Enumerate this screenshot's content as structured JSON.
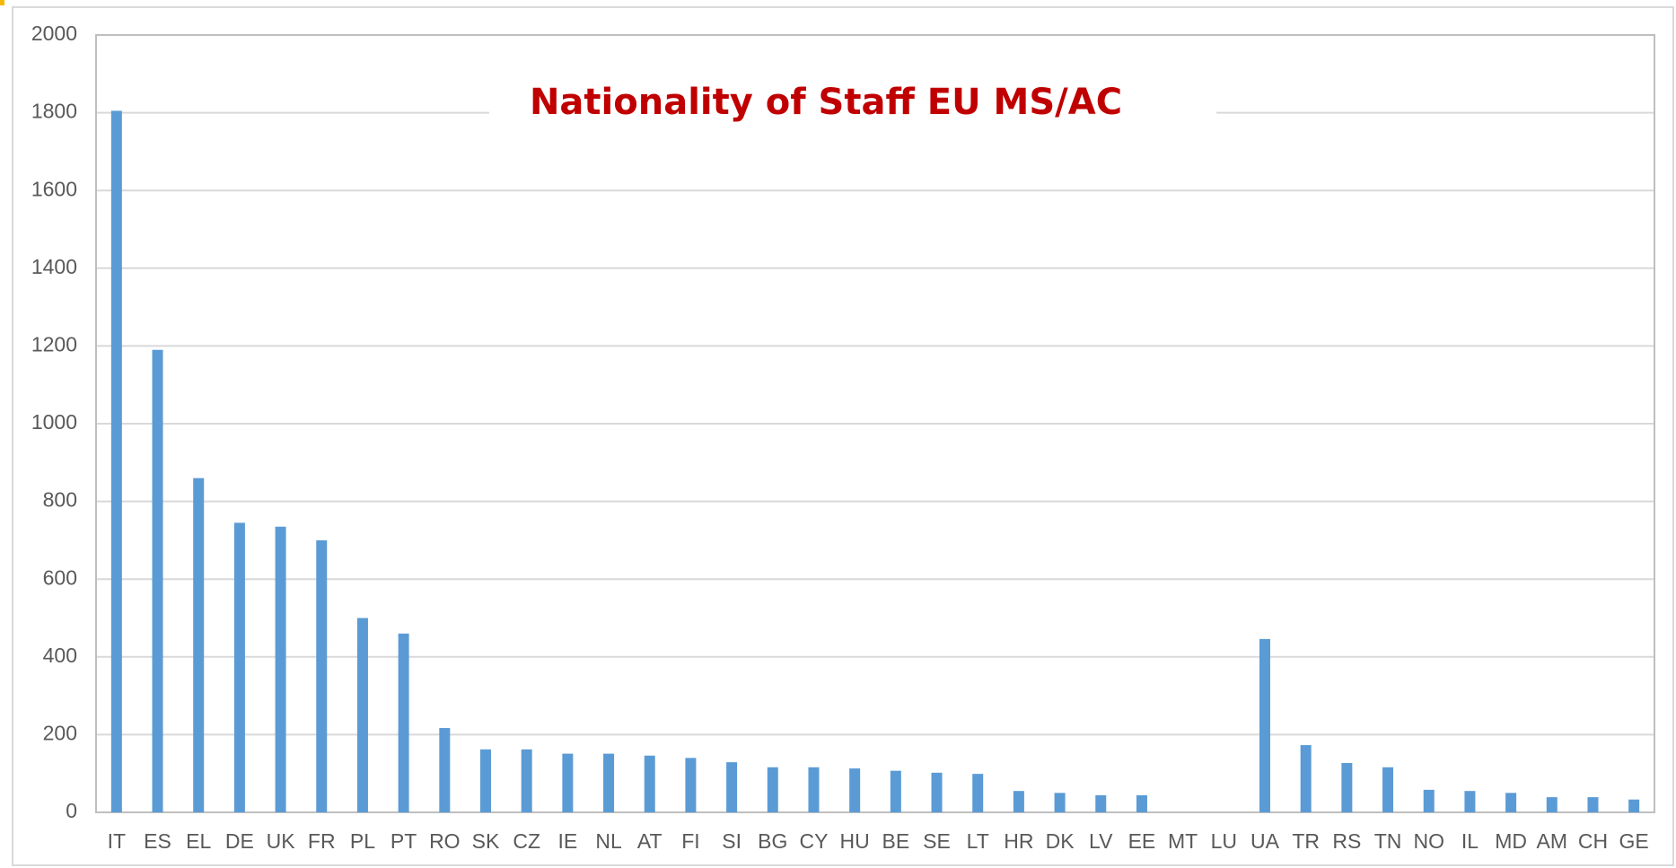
{
  "chart_data": {
    "type": "bar",
    "title": "Nationality of Staff EU MS/AC",
    "categories": [
      "IT",
      "ES",
      "EL",
      "DE",
      "UK",
      "FR",
      "PL",
      "PT",
      "RO",
      "SK",
      "CZ",
      "IE",
      "NL",
      "AT",
      "FI",
      "SI",
      "BG",
      "CY",
      "HU",
      "BE",
      "SE",
      "LT",
      "HR",
      "DK",
      "LV",
      "EE",
      "MT",
      "LU",
      "UA",
      "TR",
      "RS",
      "TN",
      "NO",
      "IL",
      "MD",
      "AM",
      "CH",
      "GE"
    ],
    "values": [
      1805,
      1190,
      860,
      745,
      735,
      700,
      500,
      460,
      217,
      162,
      162,
      151,
      151,
      146,
      140,
      129,
      116,
      116,
      113,
      107,
      102,
      99,
      55,
      50,
      44,
      44,
      0,
      0,
      446,
      173,
      127,
      116,
      58,
      55,
      50,
      39,
      39,
      33
    ],
    "color": "#5b9bd5",
    "ylim": [
      0,
      2000
    ],
    "yticks": [
      0,
      200,
      400,
      600,
      800,
      1000,
      1200,
      1400,
      1600,
      1800,
      2000
    ],
    "grid": true
  }
}
